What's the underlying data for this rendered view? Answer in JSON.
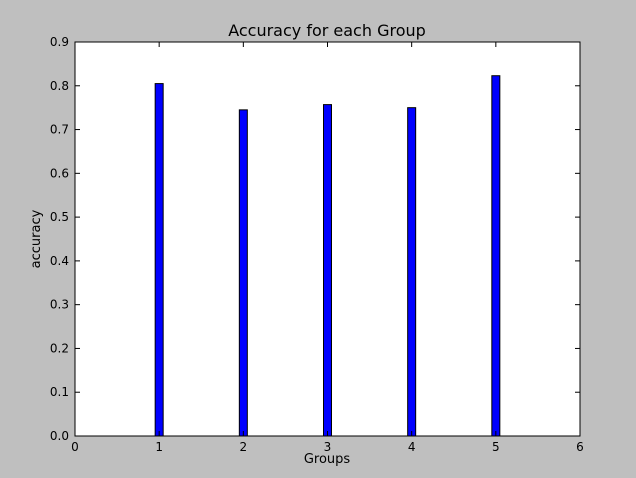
{
  "chart_data": {
    "type": "bar",
    "title": "Accuracy for each Group",
    "xlabel": "Groups",
    "ylabel": "accuracy",
    "x": [
      1,
      2,
      3,
      4,
      5
    ],
    "values": [
      0.805,
      0.745,
      0.757,
      0.75,
      0.823
    ],
    "xlim": [
      0,
      6
    ],
    "ylim": [
      0,
      0.9
    ],
    "xticks": [
      "0",
      "1",
      "2",
      "3",
      "4",
      "5",
      "6"
    ],
    "yticks": [
      "0.0",
      "0.1",
      "0.2",
      "0.3",
      "0.4",
      "0.5",
      "0.6",
      "0.7",
      "0.8",
      "0.9"
    ],
    "grid": false,
    "legend": "none",
    "colors": {
      "bar": "#0000ff",
      "background": "#bfbfbf",
      "plot_area": "#ffffff"
    }
  }
}
